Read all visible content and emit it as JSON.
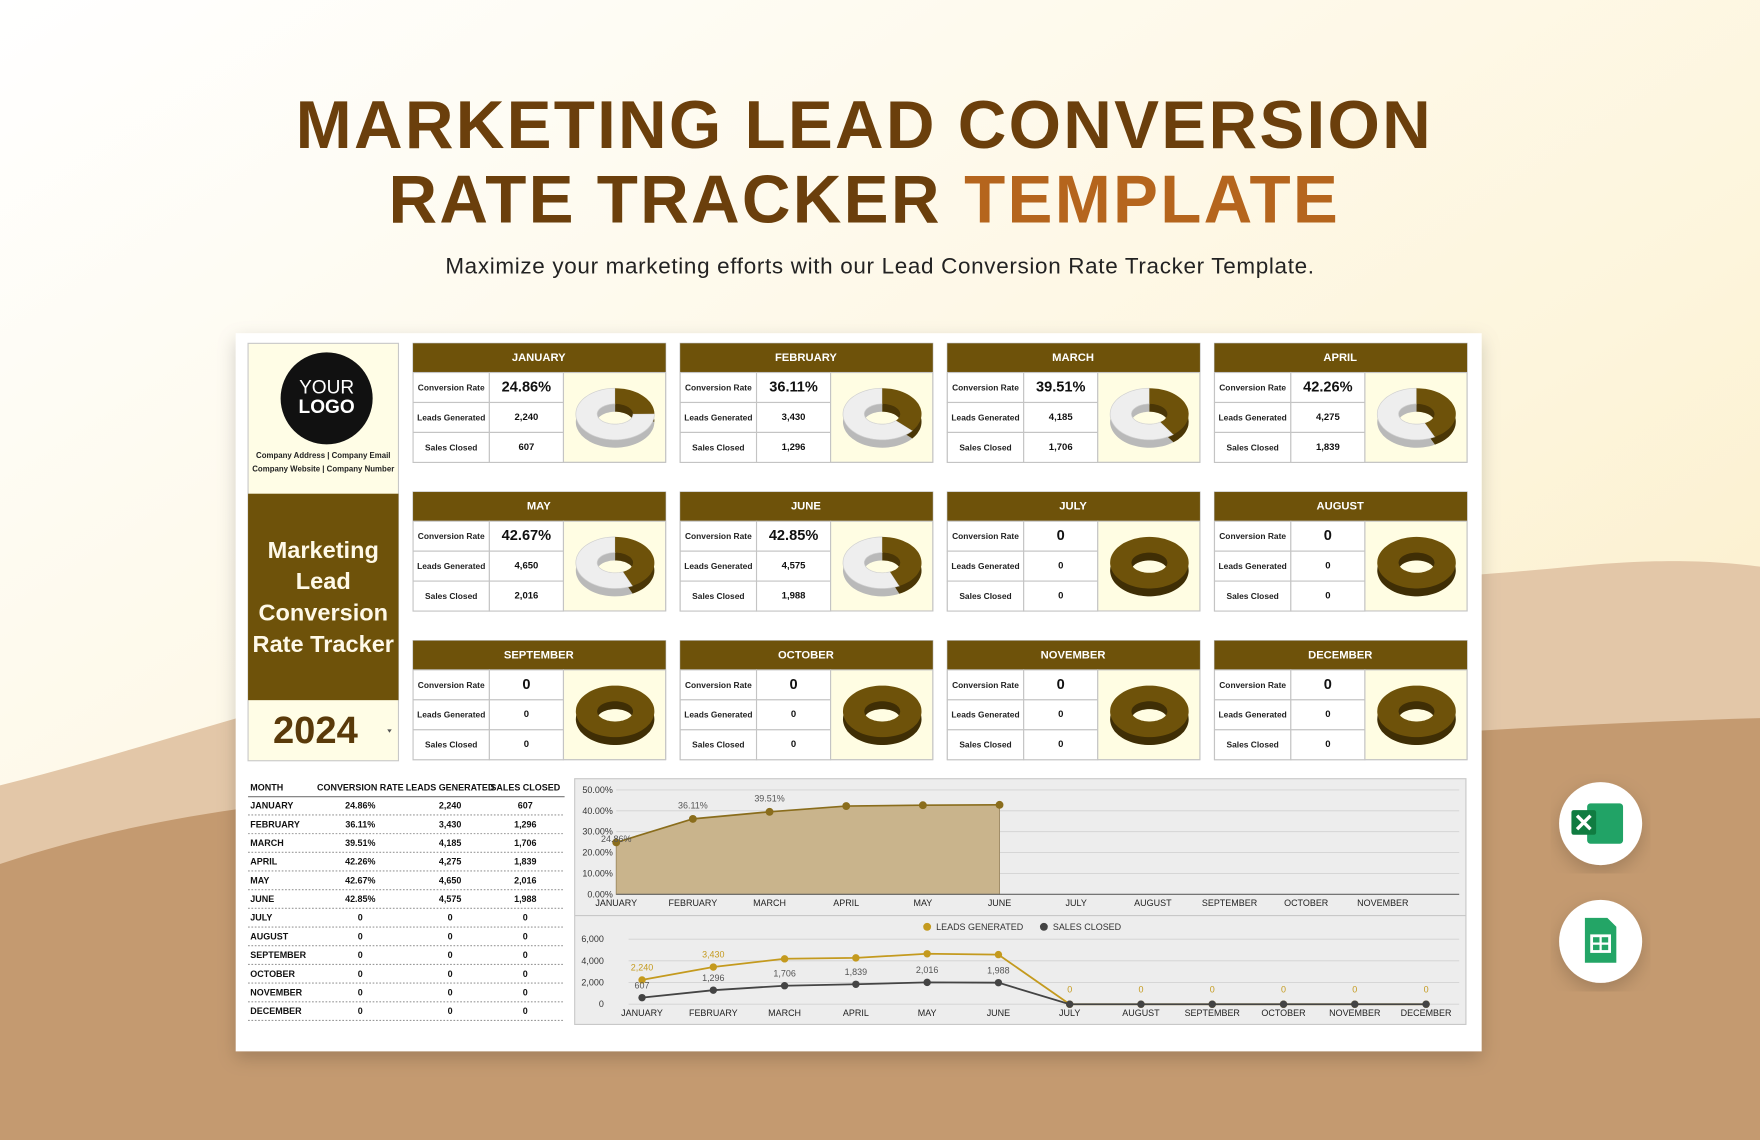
{
  "header": {
    "title_line1": "MARKETING LEAD CONVERSION",
    "title_line2": "RATE TRACKER",
    "title_highlight": "TEMPLATE",
    "subtitle": "Maximize your marketing efforts with our Lead Conversion Rate Tracker Template."
  },
  "sidebar": {
    "logo": [
      "YOUR",
      "LOGO"
    ],
    "company": [
      "Company Address | Company Email",
      "Company Website | Company Number"
    ],
    "title_lines": [
      "Marketing",
      "Lead",
      "Conversion",
      "Rate Tracker"
    ],
    "year": "2024"
  },
  "card_row_labels": [
    "Conversion Rate",
    "Leads Generated",
    "Sales Closed"
  ],
  "months": [
    {
      "name": "JANUARY",
      "rate": {
        "value": 24.86,
        "label": "24.86%"
      },
      "leads": {
        "value": 2240,
        "label": "2,240"
      },
      "sales": 607
    },
    {
      "name": "FEBRUARY",
      "rate": {
        "value": 36.11,
        "label": "36.11%"
      },
      "leads": {
        "value": 3430,
        "label": "3,430"
      },
      "sales": {
        "value": 1296,
        "label": "1,296"
      }
    },
    {
      "name": "MARCH",
      "rate": {
        "value": 39.51,
        "label": "39.51%"
      },
      "leads": {
        "value": 4185,
        "label": "4,185"
      },
      "sales": {
        "value": 1706,
        "label": "1,706"
      }
    },
    {
      "name": "APRIL",
      "rate": {
        "value": 42.26,
        "label": "42.26%"
      },
      "leads": {
        "value": 4275,
        "label": "4,275"
      },
      "sales": {
        "value": 1839,
        "label": "1,839"
      }
    },
    {
      "name": "MAY",
      "rate": {
        "value": 42.67,
        "label": "42.67%"
      },
      "leads": {
        "value": 4650,
        "label": "4,650"
      },
      "sales": {
        "value": 2016,
        "label": "2,016"
      }
    },
    {
      "name": "JUNE",
      "rate": {
        "value": 42.85,
        "label": "42.85%"
      },
      "leads": {
        "value": 4575,
        "label": "4,575"
      },
      "sales": {
        "value": 1988,
        "label": "1,988"
      }
    },
    {
      "name": "JULY",
      "rate": 0,
      "leads": 0,
      "sales": 0
    },
    {
      "name": "AUGUST",
      "rate": 0,
      "leads": 0,
      "sales": 0
    },
    {
      "name": "SEPTEMBER",
      "rate": 0,
      "leads": 0,
      "sales": 0
    },
    {
      "name": "OCTOBER",
      "rate": 0,
      "leads": 0,
      "sales": 0
    },
    {
      "name": "NOVEMBER",
      "rate": 0,
      "leads": 0,
      "sales": 0
    },
    {
      "name": "DECEMBER",
      "rate": 0,
      "leads": 0,
      "sales": 0
    }
  ],
  "table": {
    "columns": [
      "MONTH",
      "CONVERSION RATE",
      "LEADS GENERATED",
      "SALES CLOSED"
    ]
  },
  "charts": [
    {
      "type": "area",
      "categories": [
        "JANUARY",
        "FEBRUARY",
        "MARCH",
        "APRIL",
        "MAY",
        "JUNE",
        "JULY",
        "AUGUST",
        "SEPTEMBER",
        "OCTOBER",
        "NOVEMBER",
        null
      ],
      "values": [
        24.86,
        36.11,
        39.51,
        42.26,
        42.67,
        42.85,
        null,
        null,
        null,
        null,
        null,
        null
      ],
      "value_labels": [
        "24.86%",
        "36.11%",
        "39.51%",
        null,
        null,
        null,
        null,
        null,
        null,
        null,
        null,
        null
      ],
      "color": "#8a6d1c",
      "fill": "#c9b48c",
      "ylim": [
        0,
        50
      ],
      "yticks": [
        {
          "value": 0,
          "label": "0.00%"
        },
        {
          "value": 10,
          "label": "10.00%"
        },
        {
          "value": 20,
          "label": "20.00%"
        },
        {
          "value": 30,
          "label": "30.00%"
        },
        {
          "value": 40,
          "label": "40.00%"
        },
        {
          "value": 50,
          "label": "50.00%"
        }
      ]
    },
    {
      "type": "line",
      "series": [
        {
          "name": "LEADS GENERATED",
          "color": "#c49a1e",
          "values": [
            2240,
            3430,
            4185,
            4275,
            4650,
            4575,
            0,
            0,
            0,
            0,
            0,
            0
          ],
          "value_labels": [
            "2,240",
            "3,430",
            null,
            null,
            null,
            null,
            "0",
            "0",
            "0",
            "0",
            "0",
            "0"
          ]
        },
        {
          "name": "SALES CLOSED",
          "color": "#444444",
          "values": [
            607,
            1296,
            1706,
            1839,
            2016,
            1988,
            0,
            0,
            0,
            0,
            0,
            0
          ],
          "value_labels": [
            "607",
            "1,296",
            "1,706",
            "1,839",
            "2,016",
            "1,988",
            null,
            null,
            null,
            null,
            null,
            null
          ]
        }
      ],
      "ylim": [
        0,
        6000
      ],
      "yticks": [
        0,
        {
          "value": 2000,
          "label": "2,000"
        },
        {
          "value": 4000,
          "label": "4,000"
        },
        {
          "value": 6000,
          "label": "6,000"
        }
      ]
    }
  ]
}
